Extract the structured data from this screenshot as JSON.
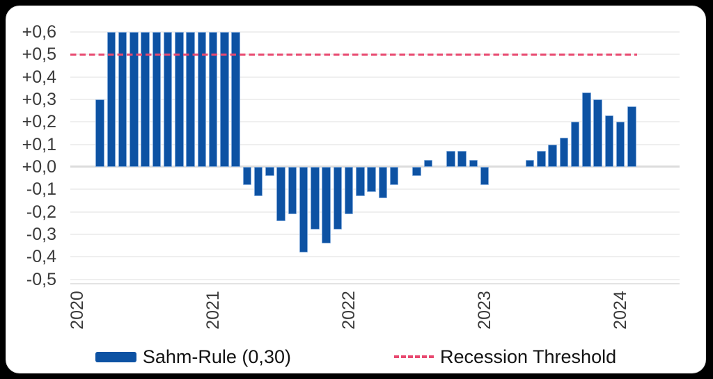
{
  "chart_data": {
    "type": "bar",
    "title": "",
    "xlabel": "",
    "ylabel": "",
    "grid": true,
    "legend_position": "bottom",
    "decimal_separator": ",",
    "ylim": [
      -0.5,
      0.6
    ],
    "y_ticks": [
      0.6,
      0.5,
      0.4,
      0.3,
      0.2,
      0.1,
      0.0,
      -0.1,
      -0.2,
      -0.3,
      -0.4,
      -0.5
    ],
    "y_tick_labels": [
      "+0,6",
      "+0,5",
      "+0,4",
      "+0,3",
      "+0,2",
      "+0,1",
      "+0,0",
      "-0,1",
      "-0,2",
      "-0,3",
      "-0,4",
      "-0,5"
    ],
    "x_tick_labels": [
      "2020",
      "2021",
      "2022",
      "2023",
      "2024"
    ],
    "x": [
      "2020-01",
      "2020-02",
      "2020-03",
      "2020-04",
      "2020-05",
      "2020-06",
      "2020-07",
      "2020-08",
      "2020-09",
      "2020-10",
      "2020-11",
      "2020-12",
      "2021-01",
      "2021-02",
      "2021-03",
      "2021-04",
      "2021-05",
      "2021-06",
      "2021-07",
      "2021-08",
      "2021-09",
      "2021-10",
      "2021-11",
      "2021-12",
      "2022-01",
      "2022-02",
      "2022-03",
      "2022-04",
      "2022-05",
      "2022-06",
      "2022-07",
      "2022-08",
      "2022-09",
      "2022-10",
      "2022-11",
      "2022-12",
      "2023-01",
      "2023-02",
      "2023-03",
      "2023-04",
      "2023-05",
      "2023-06",
      "2023-07",
      "2023-08",
      "2023-09",
      "2023-10",
      "2023-11",
      "2023-12",
      "2024-01",
      "2024-02"
    ],
    "series": [
      {
        "name": "Sahm-Rule (0,30)",
        "values": [
          0.0,
          0.0,
          0.3,
          0.6,
          0.6,
          0.6,
          0.6,
          0.6,
          0.6,
          0.6,
          0.6,
          0.6,
          0.6,
          0.6,
          0.6,
          -0.08,
          -0.13,
          -0.04,
          -0.24,
          -0.21,
          -0.38,
          -0.28,
          -0.34,
          -0.28,
          -0.21,
          -0.13,
          -0.11,
          -0.14,
          -0.08,
          0.0,
          -0.04,
          0.03,
          0.0,
          0.07,
          0.07,
          0.03,
          -0.08,
          0.0,
          0.0,
          0.0,
          0.03,
          0.07,
          0.1,
          0.13,
          0.2,
          0.33,
          0.3,
          0.23,
          0.2,
          0.27
        ]
      }
    ],
    "threshold_line": {
      "label": "Recession Threshold",
      "value": 0.5,
      "style": "dashed"
    }
  },
  "legend": {
    "series_label": "Sahm-Rule (0,30)",
    "threshold_label": "Recession Threshold"
  },
  "colors": {
    "bar": "#0d52a3",
    "bar_border": "#7fa8d9",
    "threshold": "#e8486f",
    "tick_text": "#3a3a3a",
    "legend_text": "#131313",
    "gridline": "#efefef",
    "background": "#ffffff"
  }
}
